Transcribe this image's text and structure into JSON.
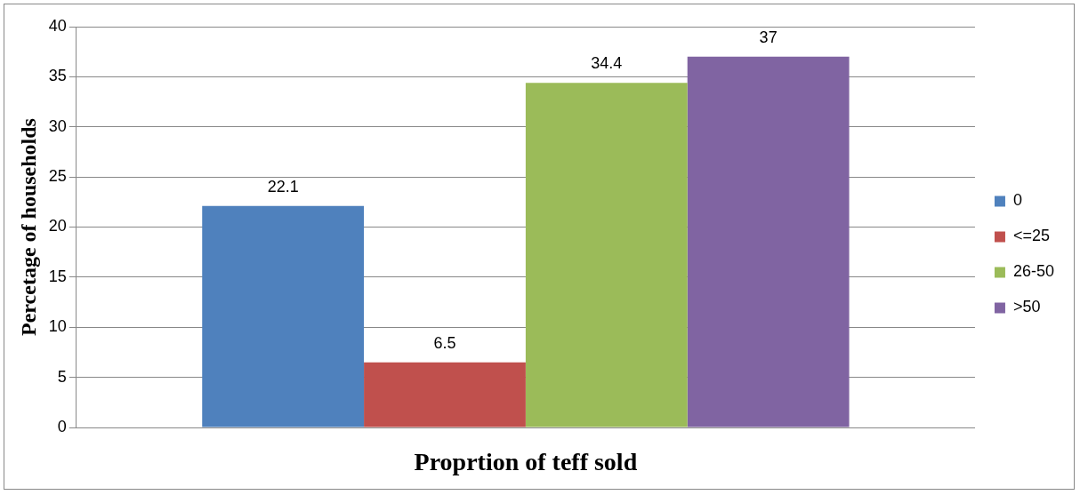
{
  "chart_data": {
    "type": "bar",
    "xlabel": "Proprtion of teff sold",
    "ylabel": "Percetage of households",
    "categories": [
      null
    ],
    "series": [
      {
        "name": "0",
        "color": "#4f81bd",
        "values": [
          22.1
        ]
      },
      {
        "name": "<=25",
        "color": "#c0504d",
        "values": [
          6.5
        ]
      },
      {
        "name": "26-50",
        "color": "#9bbb59",
        "values": [
          34.4
        ]
      },
      {
        "name": ">50",
        "color": "#8064a2",
        "values": [
          37
        ]
      }
    ],
    "ylim": [
      0,
      40
    ],
    "yticks": [
      0,
      5,
      10,
      15,
      20,
      25,
      30,
      35,
      40
    ],
    "grid": "y",
    "legend": "right",
    "data_labels": true
  }
}
